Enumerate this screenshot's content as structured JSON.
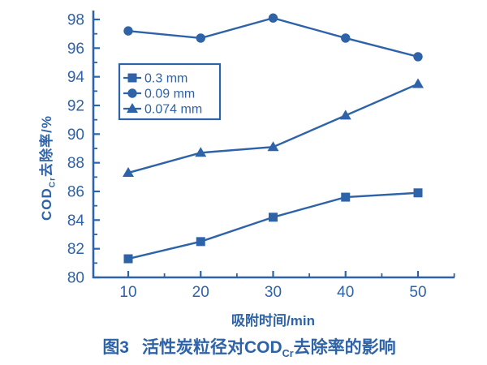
{
  "figure": {
    "caption": {
      "fig_label": "图3",
      "title_prefix": "活性炭粒径对COD",
      "title_sub": "Cr",
      "title_suffix": "去除率的影响"
    }
  },
  "chart_data": {
    "type": "line",
    "title": "图3 活性炭粒径对COD(Cr)去除率的影响",
    "xlabel": "吸附时间/min",
    "ylabel": {
      "prefix": "COD",
      "sub": "Cr",
      "suffix": "去除率/%"
    },
    "x": [
      10,
      20,
      30,
      40,
      50
    ],
    "series": [
      {
        "name": "0.3 mm",
        "marker": "square",
        "values": [
          81.3,
          82.5,
          84.2,
          85.6,
          85.9
        ]
      },
      {
        "name": "0.09 mm",
        "marker": "circle",
        "values": [
          97.2,
          96.7,
          98.1,
          96.7,
          95.4
        ]
      },
      {
        "name": "0.074 mm",
        "marker": "triangle",
        "values": [
          87.3,
          88.7,
          89.1,
          91.3,
          93.5
        ]
      }
    ],
    "xlim": [
      5,
      55
    ],
    "ylim": [
      80,
      98.7
    ],
    "x_ticks": [
      10,
      20,
      30,
      40,
      50
    ],
    "x_minor_ticks": [
      15,
      25,
      35,
      45,
      55
    ],
    "y_ticks": [
      80,
      82,
      84,
      86,
      88,
      90,
      92,
      94,
      96,
      98
    ],
    "y_minor_ticks": [
      81,
      83,
      85,
      87,
      89,
      91,
      93,
      95,
      97
    ],
    "grid": false,
    "legend_position": "inside-upper-left",
    "color": "#2e63a8",
    "background": "#ffffff"
  }
}
